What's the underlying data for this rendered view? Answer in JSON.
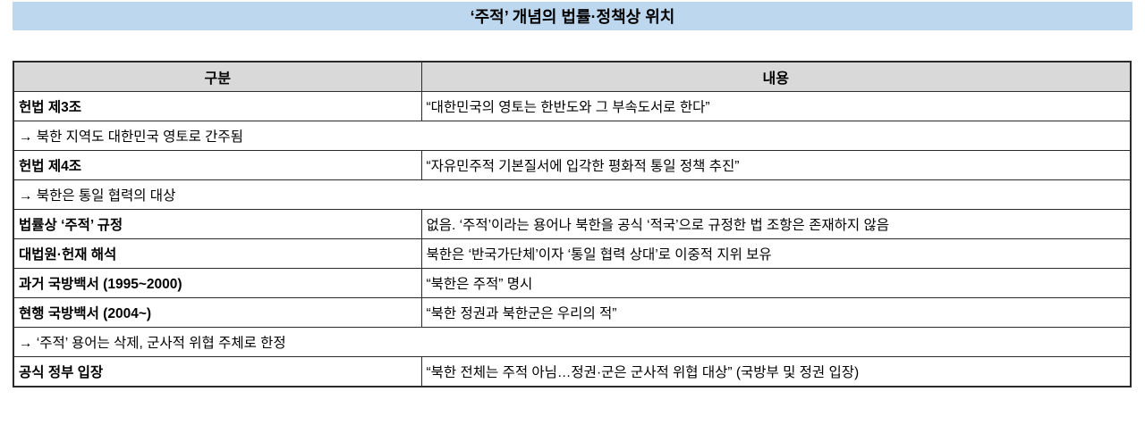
{
  "title": "‘주적’ 개념의 법률·정책상 위치",
  "table": {
    "headers": [
      "구분",
      "내용"
    ],
    "rows": [
      {
        "type": "data",
        "label": "헌법 제3조",
        "content": "“대한민국의 영토는 한반도와 그 부속도서로 한다”"
      },
      {
        "type": "note",
        "content": "→ 북한 지역도 대한민국 영토로 간주됨"
      },
      {
        "type": "data",
        "label": "헌법 제4조",
        "content": "“자유민주적 기본질서에 입각한 평화적 통일 정책 추진”"
      },
      {
        "type": "note",
        "content": "→ 북한은 통일 협력의 대상"
      },
      {
        "type": "data",
        "label": "법률상 ‘주적’ 규정",
        "content": "없음. ‘주적’이라는 용어나 북한을 공식 ‘적국’으로 규정한 법 조항은 존재하지 않음"
      },
      {
        "type": "data",
        "label": "대법원·헌재 해석",
        "content": "북한은 ‘반국가단체’이자 ‘통일 협력 상대’로 이중적 지위 보유"
      },
      {
        "type": "data",
        "label": "과거 국방백서 (1995~2000)",
        "content": "“북한은 주적” 명시"
      },
      {
        "type": "data",
        "label": "현행 국방백서 (2004~)",
        "content": "“북한 정권과 북한군은 우리의 적”"
      },
      {
        "type": "note",
        "content": "→ ‘주적’ 용어는 삭제, 군사적 위협 주체로 한정"
      },
      {
        "type": "data",
        "label": "공식 정부 입장",
        "content": "“북한 전체는 주적 아님…정권·군은 군사적 위협 대상” (국방부 및 정권 입장)"
      }
    ]
  },
  "colors": {
    "title_bg": "#BDD7EE",
    "header_bg": "#D9D9D9",
    "border": "#2b2b2b"
  }
}
